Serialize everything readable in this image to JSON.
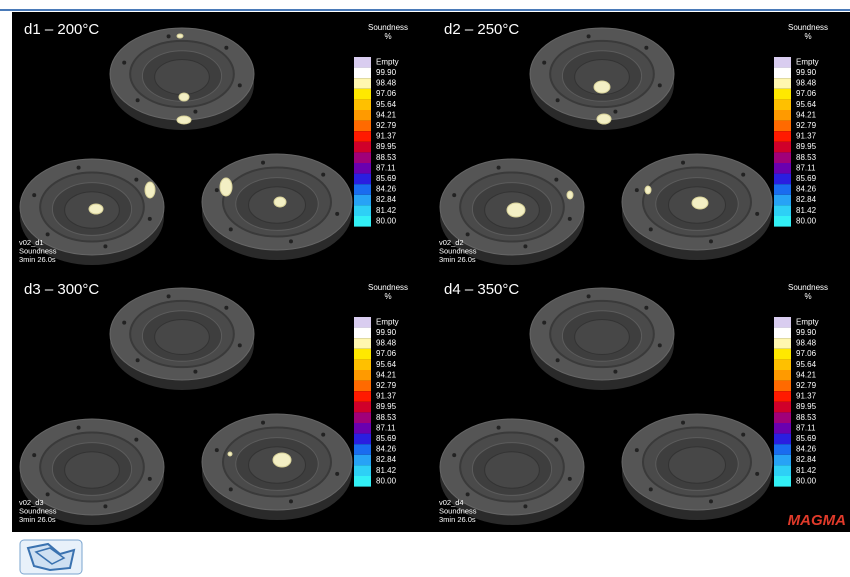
{
  "panels": [
    {
      "title": "d1 – 200°C",
      "legend": {
        "title": "Soundness",
        "unit": "%",
        "labels": [
          "Empty",
          "99.90",
          "98.48",
          "97.06",
          "95.64",
          "94.21",
          "92.79",
          "91.37",
          "89.95",
          "88.53",
          "87.11",
          "85.69",
          "84.26",
          "82.84",
          "81.42",
          "80.00"
        ]
      },
      "info": [
        "v02_d1",
        "Soundness",
        "3min 26.0s"
      ]
    },
    {
      "title": "d2 – 250°C",
      "legend": {
        "title": "Soundness",
        "unit": "%",
        "labels": [
          "Empty",
          "99.90",
          "98.48",
          "97.06",
          "95.64",
          "94.21",
          "92.79",
          "91.37",
          "89.95",
          "88.53",
          "87.11",
          "85.69",
          "84.26",
          "82.84",
          "81.42",
          "80.00"
        ]
      },
      "info": [
        "v02_d2",
        "Soundness",
        "3min 26.0s"
      ]
    },
    {
      "title": "d3 – 300°C",
      "legend": {
        "title": "Soundness",
        "unit": "%",
        "labels": [
          "Empty",
          "99.90",
          "98.48",
          "97.06",
          "95.64",
          "94.21",
          "92.79",
          "91.37",
          "89.95",
          "88.53",
          "87.11",
          "85.69",
          "84.26",
          "82.84",
          "81.42",
          "80.00"
        ]
      },
      "info": [
        "v02_d3",
        "Soundness",
        "3min 26.0s"
      ]
    },
    {
      "title": "d4 – 350°C",
      "legend": {
        "title": "Soundness",
        "unit": "%",
        "labels": [
          "Empty",
          "99.90",
          "98.48",
          "97.06",
          "95.64",
          "94.21",
          "92.79",
          "91.37",
          "89.95",
          "88.53",
          "87.11",
          "85.69",
          "84.26",
          "82.84",
          "81.42",
          "80.00"
        ]
      },
      "info": [
        "v02_d4",
        "Soundness",
        "3min 26.0s"
      ]
    }
  ],
  "legend_colors": [
    "#d9cdf0",
    "#ffffff",
    "#fff7b0",
    "#ffe800",
    "#ffc000",
    "#ff9a00",
    "#ff6a00",
    "#ff1a00",
    "#d0002a",
    "#a0007a",
    "#6a00b0",
    "#2a1ee0",
    "#1a6cf0",
    "#27a3f6",
    "#2ed0f6",
    "#32f0f6"
  ],
  "logo": "MAGMA"
}
